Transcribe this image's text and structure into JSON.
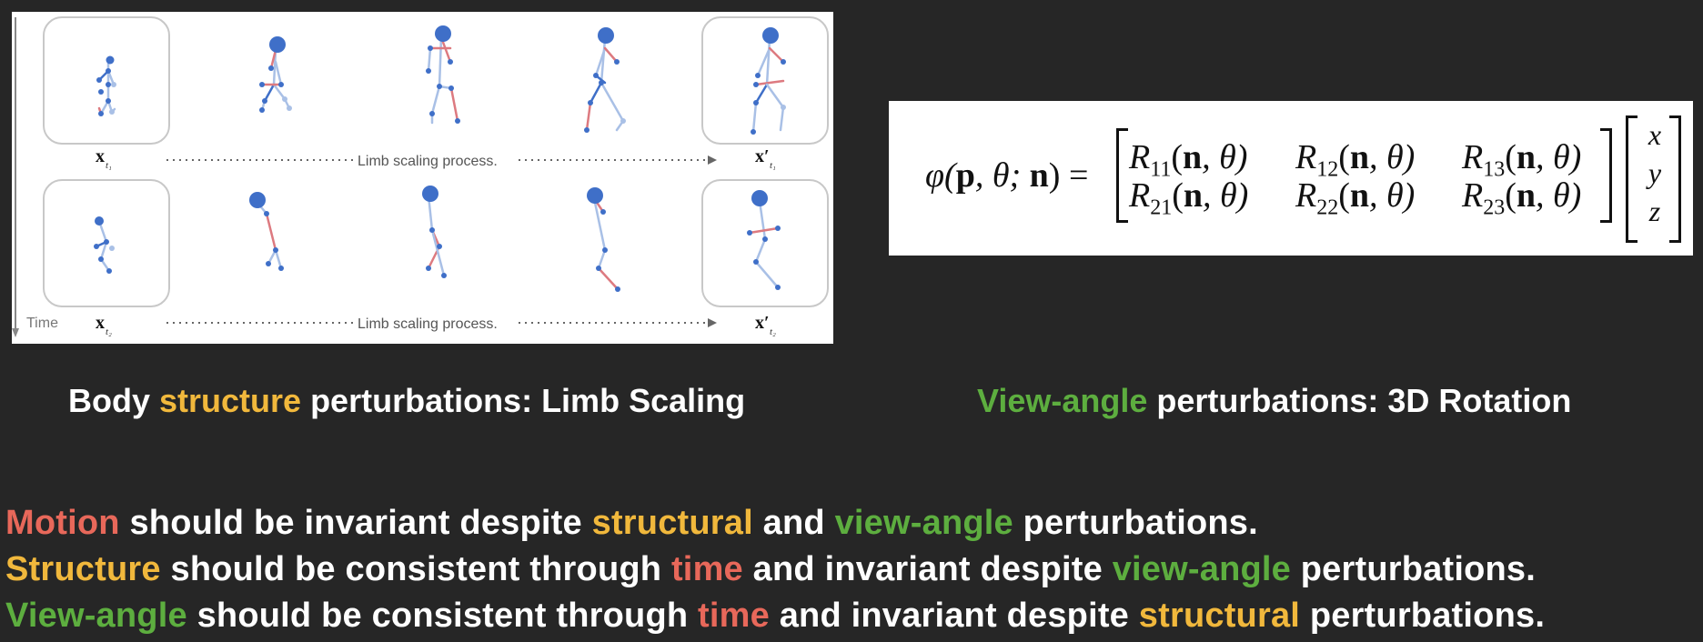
{
  "figure": {
    "row1": {
      "start_symbol": "x",
      "start_sub": "t₁",
      "end_symbol": "x′",
      "end_sub": "t₁",
      "process_label": "Limb scaling process."
    },
    "row2": {
      "start_symbol": "x",
      "start_sub": "t₂",
      "end_symbol": "x′",
      "end_sub": "t₂",
      "process_label": "Limb scaling process."
    },
    "time_label": "Time",
    "colors": {
      "joint": "#3f6fc8",
      "bone_light": "#a9c0e6",
      "bone_red": "#dd7a80",
      "frame": "#c8c8c8"
    }
  },
  "formula": {
    "lhs": [
      "φ(",
      "p",
      ", θ; ",
      "n",
      ") ="
    ],
    "matrix": [
      [
        "R",
        "11",
        "R",
        "12",
        "R",
        "13"
      ],
      [
        "R",
        "21",
        "R",
        "22",
        "R",
        "23"
      ]
    ],
    "arg_open": "(",
    "arg_n": "n",
    "arg_rest": ", θ)",
    "vector": [
      "x",
      "y",
      "z"
    ]
  },
  "captions": {
    "left": {
      "a": "Body ",
      "b": "structure",
      "c": " perturbations: Limb Scaling"
    },
    "right": {
      "a": "View-angle",
      "b": " perturbations: 3D Rotation"
    }
  },
  "statements": [
    [
      "Motion",
      " should be invariant despite ",
      "structural",
      " and ",
      "view-angle",
      " perturbations."
    ],
    [
      "Structure",
      " should be consistent through ",
      "time",
      " and invariant despite ",
      "view-angle",
      " perturbations."
    ],
    [
      "View-angle",
      " should be consistent through ",
      "time",
      " and invariant despite ",
      "structural",
      " perturbations."
    ]
  ]
}
